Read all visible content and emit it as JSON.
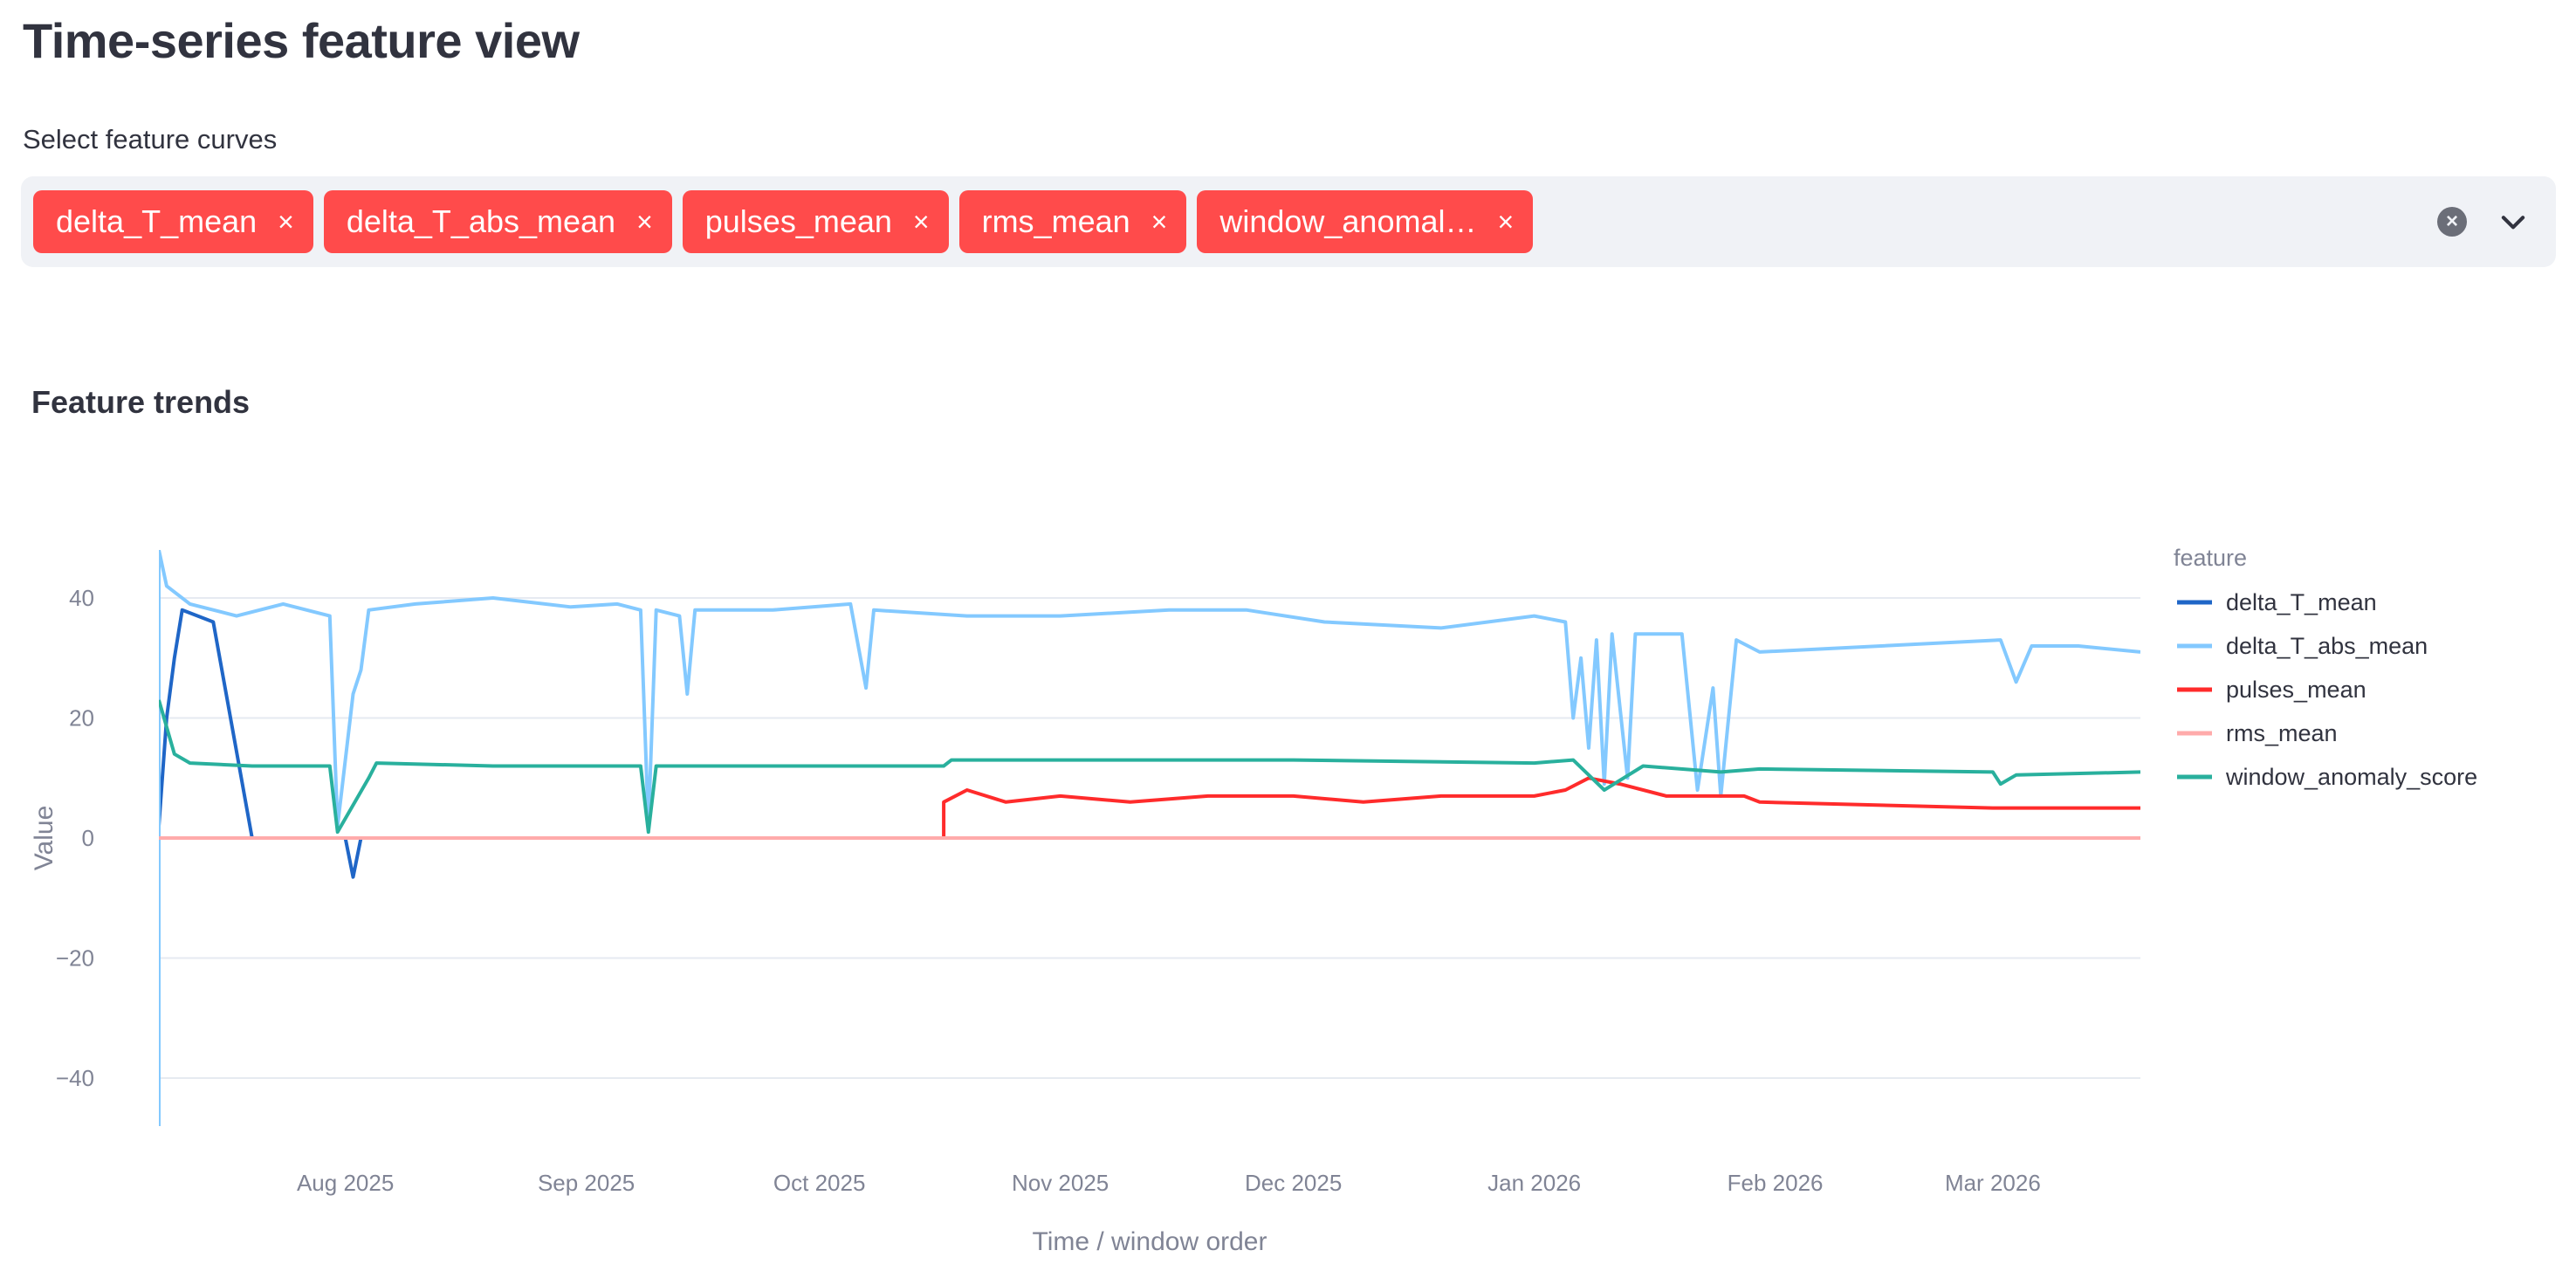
{
  "header": {
    "title": "Time-series feature view"
  },
  "selector": {
    "label": "Select feature curves",
    "tags": [
      "delta_T_mean",
      "delta_T_abs_mean",
      "pulses_mean",
      "rms_mean",
      "window_anomal…"
    ],
    "remove_symbol": "×",
    "clear_symbol": "×"
  },
  "section": {
    "title": "Feature trends"
  },
  "chart_data": {
    "type": "line",
    "xlabel": "Time / window order",
    "ylabel": "Value",
    "ylim": [
      -48,
      48
    ],
    "yticks": [
      -40,
      -20,
      0,
      20,
      40
    ],
    "xlim": [
      "2025-07-08",
      "2026-03-20"
    ],
    "xticks": [
      {
        "date": "2025-08-01",
        "label": "Aug 2025"
      },
      {
        "date": "2025-09-01",
        "label": "Sep 2025"
      },
      {
        "date": "2025-10-01",
        "label": "Oct 2025"
      },
      {
        "date": "2025-11-01",
        "label": "Nov 2025"
      },
      {
        "date": "2025-12-01",
        "label": "Dec 2025"
      },
      {
        "date": "2026-01-01",
        "label": "Jan 2026"
      },
      {
        "date": "2026-02-01",
        "label": "Feb 2026"
      },
      {
        "date": "2026-03-01",
        "label": "Mar 2026"
      }
    ],
    "grid": true,
    "legend_title": "feature",
    "legend_position": "right",
    "series": [
      {
        "name": "delta_T_mean",
        "color": "#1f66c7",
        "points": [
          [
            "2025-07-08",
            2
          ],
          [
            "2025-07-09",
            20
          ],
          [
            "2025-07-10",
            30
          ],
          [
            "2025-07-11",
            38
          ],
          [
            "2025-07-13",
            37
          ],
          [
            "2025-07-15",
            36
          ],
          [
            "2025-07-20",
            0
          ],
          [
            "2025-08-01",
            0
          ],
          [
            "2025-08-02",
            -6.5
          ],
          [
            "2025-08-03",
            0
          ],
          [
            "2025-09-01",
            0
          ],
          [
            "2025-10-01",
            0
          ],
          [
            "2025-11-01",
            0
          ],
          [
            "2025-12-01",
            0
          ],
          [
            "2026-01-01",
            0
          ],
          [
            "2026-02-01",
            0
          ],
          [
            "2026-03-01",
            0
          ],
          [
            "2026-03-20",
            0
          ]
        ]
      },
      {
        "name": "delta_T_abs_mean",
        "color": "#83c9ff",
        "points": [
          [
            "2025-07-08",
            -48
          ],
          [
            "2025-07-08",
            48
          ],
          [
            "2025-07-09",
            42
          ],
          [
            "2025-07-12",
            39
          ],
          [
            "2025-07-18",
            37
          ],
          [
            "2025-07-24",
            39
          ],
          [
            "2025-07-30",
            37
          ],
          [
            "2025-07-31",
            2
          ],
          [
            "2025-08-02",
            24
          ],
          [
            "2025-08-03",
            28
          ],
          [
            "2025-08-04",
            38
          ],
          [
            "2025-08-10",
            39
          ],
          [
            "2025-08-20",
            40
          ],
          [
            "2025-08-30",
            38.5
          ],
          [
            "2025-09-05",
            39
          ],
          [
            "2025-09-08",
            38
          ],
          [
            "2025-09-09",
            2
          ],
          [
            "2025-09-10",
            38
          ],
          [
            "2025-09-13",
            37
          ],
          [
            "2025-09-14",
            24
          ],
          [
            "2025-09-15",
            38
          ],
          [
            "2025-09-25",
            38
          ],
          [
            "2025-10-05",
            39
          ],
          [
            "2025-10-07",
            25
          ],
          [
            "2025-10-08",
            38
          ],
          [
            "2025-10-20",
            37
          ],
          [
            "2025-11-01",
            37
          ],
          [
            "2025-11-15",
            38
          ],
          [
            "2025-11-25",
            38
          ],
          [
            "2025-12-05",
            36
          ],
          [
            "2025-12-20",
            35
          ],
          [
            "2026-01-01",
            37
          ],
          [
            "2026-01-05",
            36
          ],
          [
            "2026-01-06",
            20
          ],
          [
            "2026-01-07",
            30
          ],
          [
            "2026-01-08",
            15
          ],
          [
            "2026-01-09",
            33
          ],
          [
            "2026-01-10",
            9
          ],
          [
            "2026-01-11",
            34
          ],
          [
            "2026-01-13",
            10
          ],
          [
            "2026-01-14",
            34
          ],
          [
            "2026-01-20",
            34
          ],
          [
            "2026-01-22",
            8
          ],
          [
            "2026-01-24",
            25
          ],
          [
            "2026-01-25",
            7
          ],
          [
            "2026-01-27",
            33
          ],
          [
            "2026-01-30",
            31
          ],
          [
            "2026-03-02",
            33
          ],
          [
            "2026-03-04",
            26
          ],
          [
            "2026-03-06",
            32
          ],
          [
            "2026-03-12",
            32
          ],
          [
            "2026-03-20",
            31
          ]
        ]
      },
      {
        "name": "pulses_mean",
        "color": "#ff2b2b",
        "points": [
          [
            "2025-07-08",
            0
          ],
          [
            "2025-10-17",
            0
          ],
          [
            "2025-10-17",
            6
          ],
          [
            "2025-10-20",
            8
          ],
          [
            "2025-10-25",
            6
          ],
          [
            "2025-11-01",
            7
          ],
          [
            "2025-11-10",
            6
          ],
          [
            "2025-11-20",
            7
          ],
          [
            "2025-12-01",
            7
          ],
          [
            "2025-12-10",
            6
          ],
          [
            "2025-12-20",
            7
          ],
          [
            "2026-01-01",
            7
          ],
          [
            "2026-01-05",
            8
          ],
          [
            "2026-01-08",
            10
          ],
          [
            "2026-01-12",
            9
          ],
          [
            "2026-01-18",
            7
          ],
          [
            "2026-01-28",
            7
          ],
          [
            "2026-01-30",
            6
          ],
          [
            "2026-03-01",
            5
          ],
          [
            "2026-03-10",
            5
          ],
          [
            "2026-03-20",
            5
          ]
        ]
      },
      {
        "name": "rms_mean",
        "color": "#ffabab",
        "points": [
          [
            "2025-07-08",
            0
          ],
          [
            "2025-09-01",
            0
          ],
          [
            "2025-11-01",
            0
          ],
          [
            "2026-01-01",
            0
          ],
          [
            "2026-03-01",
            0
          ],
          [
            "2026-03-20",
            0
          ]
        ]
      },
      {
        "name": "window_anomaly_score",
        "color": "#29b09d",
        "points": [
          [
            "2025-07-08",
            23
          ],
          [
            "2025-07-10",
            14
          ],
          [
            "2025-07-12",
            12.5
          ],
          [
            "2025-07-20",
            12
          ],
          [
            "2025-07-30",
            12
          ],
          [
            "2025-07-31",
            1
          ],
          [
            "2025-08-04",
            10
          ],
          [
            "2025-08-05",
            12.5
          ],
          [
            "2025-08-20",
            12
          ],
          [
            "2025-09-08",
            12
          ],
          [
            "2025-09-09",
            1
          ],
          [
            "2025-09-10",
            12
          ],
          [
            "2025-10-01",
            12
          ],
          [
            "2025-10-17",
            12
          ],
          [
            "2025-10-18",
            13
          ],
          [
            "2025-11-01",
            13
          ],
          [
            "2025-12-01",
            13
          ],
          [
            "2026-01-01",
            12.5
          ],
          [
            "2026-01-06",
            13
          ],
          [
            "2026-01-10",
            8
          ],
          [
            "2026-01-15",
            12
          ],
          [
            "2026-01-25",
            11
          ],
          [
            "2026-01-30",
            11.5
          ],
          [
            "2026-03-01",
            11
          ],
          [
            "2026-03-02",
            9
          ],
          [
            "2026-03-04",
            10.5
          ],
          [
            "2026-03-20",
            11
          ]
        ]
      }
    ]
  }
}
